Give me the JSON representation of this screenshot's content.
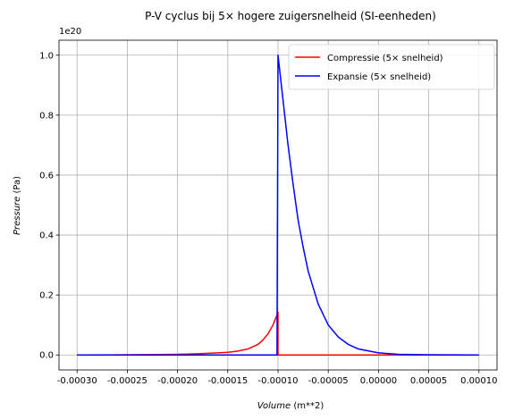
{
  "chart_data": {
    "type": "line",
    "title": "P-V cyclus bij 5× hogere zuigersnelheid (SI-eenheden)",
    "xlabel": "Volume",
    "xlabel_unit": "(m**2)",
    "ylabel": "Pressure",
    "ylabel_unit": "(Pa)",
    "y_offset_text": "1e20",
    "xlim": [
      -0.000318,
      0.000118
    ],
    "ylim": [
      -0.05,
      1.05
    ],
    "x_ticks": [
      -0.0003,
      -0.00025,
      -0.0002,
      -0.00015,
      -0.0001,
      -5e-05,
      0.0,
      5e-05,
      0.0001
    ],
    "x_tick_labels": [
      "-0.00030",
      "-0.00025",
      "-0.00020",
      "-0.00015",
      "-0.00010",
      "-0.00005",
      "0.00000",
      "0.00005",
      "0.00010"
    ],
    "y_ticks": [
      0.0,
      0.2,
      0.4,
      0.6,
      0.8,
      1.0
    ],
    "y_tick_labels": [
      "0.0",
      "0.2",
      "0.4",
      "0.6",
      "0.8",
      "1.0"
    ],
    "grid": true,
    "legend_position": "top-right",
    "series": [
      {
        "name": "Compressie (5× snelheid)",
        "color": "#ff0000",
        "x": [
          -0.0003,
          -0.00025,
          -0.0002,
          -0.00018,
          -0.00016,
          -0.00015,
          -0.00014,
          -0.00013,
          -0.00012,
          -0.000115,
          -0.00011,
          -0.000105,
          -0.000102,
          -0.0001,
          -0.0001,
          -5e-05,
          0.0,
          5e-05,
          0.0001
        ],
        "values": [
          0.0,
          0.0005,
          0.002,
          0.004,
          0.007,
          0.009,
          0.013,
          0.02,
          0.035,
          0.05,
          0.07,
          0.1,
          0.125,
          0.143,
          0.0,
          0.0,
          0.0,
          0.0,
          0.0
        ]
      },
      {
        "name": "Expansie (5× snelheid)",
        "color": "#0000ff",
        "x": [
          -0.0003,
          -0.00025,
          -0.0002,
          -0.00015,
          -0.000101,
          -0.0001,
          -9.5e-05,
          -9e-05,
          -8.5e-05,
          -8e-05,
          -7.5e-05,
          -7e-05,
          -6e-05,
          -5e-05,
          -4e-05,
          -3e-05,
          -2e-05,
          0.0,
          2e-05,
          5e-05,
          0.0001
        ],
        "values": [
          0.0,
          0.0,
          0.0,
          0.0,
          0.0,
          1.0,
          0.85,
          0.7,
          0.57,
          0.45,
          0.36,
          0.28,
          0.17,
          0.1,
          0.06,
          0.035,
          0.02,
          0.007,
          0.002,
          0.0005,
          0.0
        ]
      }
    ]
  }
}
